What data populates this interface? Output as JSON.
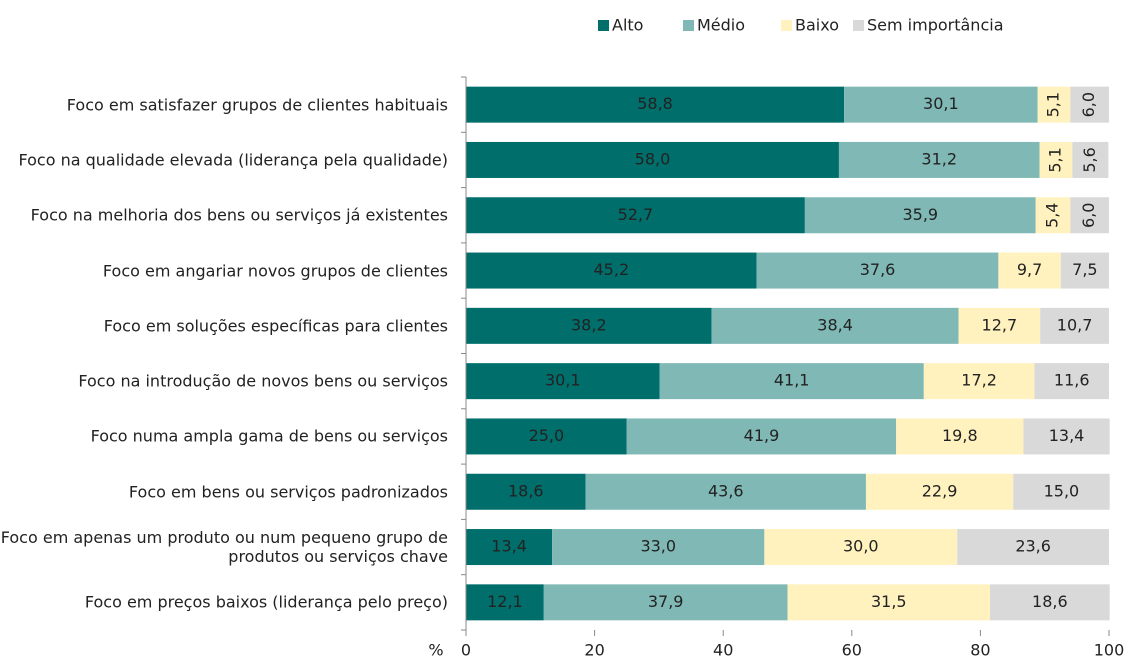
{
  "chart_data": {
    "type": "stacked_bar_horizontal",
    "categories": [
      "Foco em satisfazer grupos de clientes habituais",
      "Foco na qualidade elevada (liderança pela qualidade)",
      "Foco na melhoria dos bens ou serviços já existentes",
      "Foco em angariar novos grupos de clientes",
      "Foco em soluções específicas para clientes",
      "Foco na introdução de novos bens ou serviços",
      "Foco numa ampla gama de bens ou serviços",
      "Foco em bens ou serviços padronizados",
      "Foco em apenas um produto ou num pequeno grupo de produtos ou serviços chave",
      "Foco em preços baixos (liderança pelo preço)"
    ],
    "series": [
      {
        "name": "Alto",
        "color": "#006e6b",
        "text_color": "#ffffff",
        "values": [
          58.8,
          58.0,
          52.7,
          45.2,
          38.2,
          30.1,
          25.0,
          18.6,
          13.4,
          12.1
        ],
        "value_labels": [
          "58,8",
          "58,0",
          "52,7",
          "45,2",
          "38,2",
          "30,1",
          "25,0",
          "18,6",
          "13,4",
          "12,1"
        ]
      },
      {
        "name": "Médio",
        "color": "#7fb8b5",
        "text_color": "#222222",
        "values": [
          30.1,
          31.2,
          35.9,
          37.6,
          38.4,
          41.1,
          41.9,
          43.6,
          33.0,
          37.9
        ],
        "value_labels": [
          "30,1",
          "31,2",
          "35,9",
          "37,6",
          "38,4",
          "41,1",
          "41,9",
          "43,6",
          "33,0",
          "37,9"
        ]
      },
      {
        "name": "Baixo",
        "color": "#fff2bf",
        "text_color": "#222222",
        "values": [
          5.1,
          5.1,
          5.4,
          9.7,
          12.7,
          17.2,
          19.8,
          22.9,
          30.0,
          31.5
        ],
        "value_labels": [
          "5,1",
          "5,1",
          "5,4",
          "9,7",
          "12,7",
          "17,2",
          "19,8",
          "22,9",
          "30,0",
          "31,5"
        ]
      },
      {
        "name": "Sem importância",
        "color": "#d9d9d9",
        "text_color": "#222222",
        "values": [
          6.0,
          5.6,
          6.0,
          7.5,
          10.7,
          11.6,
          13.4,
          15.0,
          23.6,
          18.6
        ],
        "value_labels": [
          "6,0",
          "5,6",
          "6,0",
          "7,5",
          "10,7",
          "11,6",
          "13,4",
          "15,0",
          "23,6",
          "18,6"
        ]
      }
    ],
    "x_label": "%",
    "xlim": [
      0,
      100
    ],
    "xticks": [
      0,
      20,
      40,
      60,
      80,
      100
    ],
    "legend": "top-right"
  }
}
